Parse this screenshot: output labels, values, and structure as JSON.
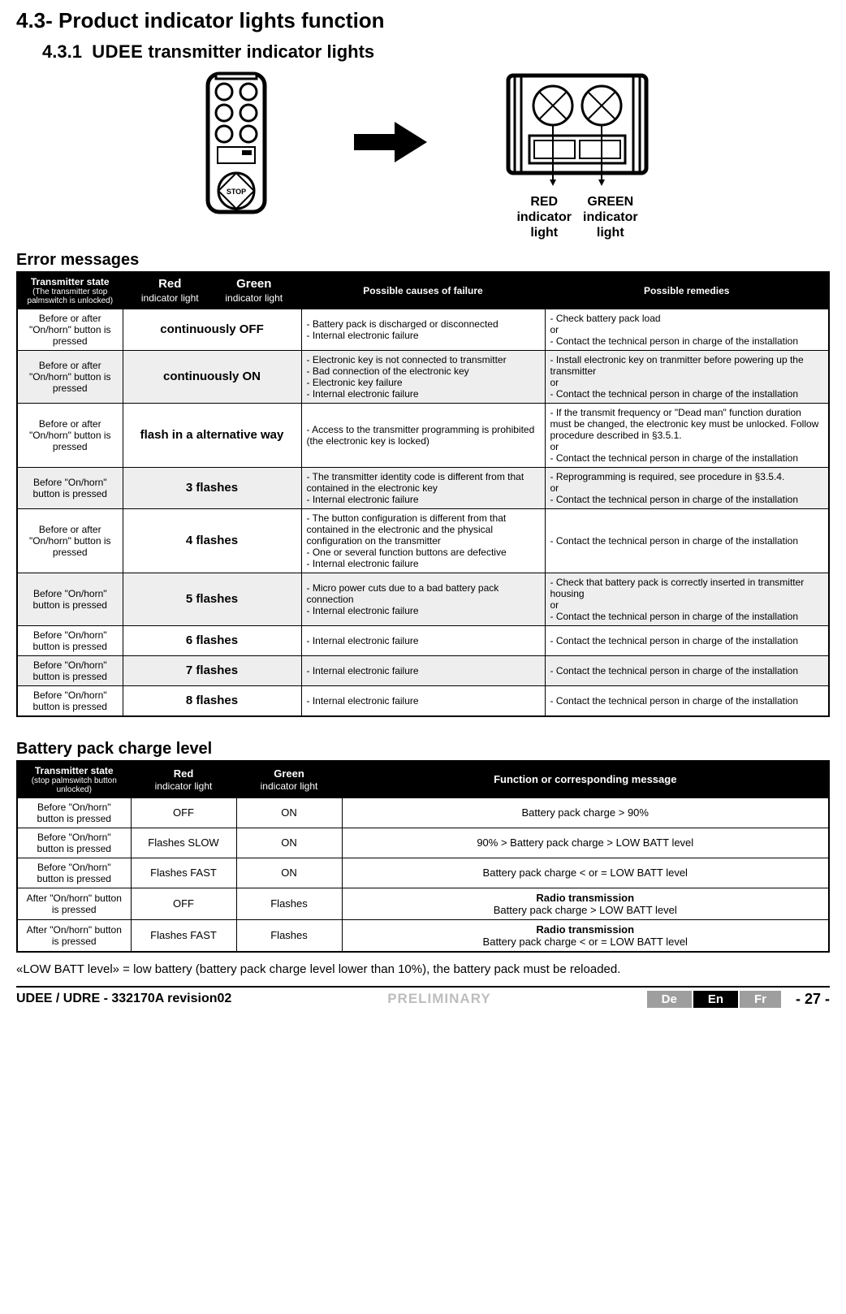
{
  "section": "4.3- Product indicator lights function",
  "subsection_number": "4.3.1",
  "brand": "UDEE",
  "subsection_text": " transmitter indicator lights",
  "red_label": "RED\nindicator\nlight",
  "green_label": "GREEN\nindicator\nlight",
  "errors_heading": "Error messages",
  "errors_header": {
    "state": "Transmitter state",
    "state_sub": "(The transmitter stop palmswitch is unlocked)",
    "red": "Red",
    "red_sub": "indicator light",
    "green": "Green",
    "green_sub": "indicator light",
    "cause": "Possible causes of failure",
    "remedy": "Possible remedies"
  },
  "errors_rows": [
    {
      "state": "Before or after \"On/horn\" button is pressed",
      "indicator": "continuously OFF",
      "cause": "- Battery pack is discharged or disconnected\n- Internal electronic failure",
      "remedy": "- Check battery pack load\nor\n- Contact the technical person in charge of the installation",
      "shaded": false
    },
    {
      "state": "Before or after \"On/horn\" button is pressed",
      "indicator": "continuously ON",
      "cause": "- Electronic key is not connected to transmitter\n- Bad connection of the electronic key\n- Electronic key failure\n- Internal electronic failure",
      "remedy": "- Install electronic key on tranmitter before powering up the transmitter\nor\n- Contact the technical person in charge of the installation",
      "shaded": true
    },
    {
      "state": "Before or after \"On/horn\" button is pressed",
      "indicator": "flash in a alternative way",
      "cause": "- Access to the transmitter programming is prohibited (the electronic key is locked)",
      "remedy": "- If the transmit frequency or \"Dead man\" function duration must be changed, the electronic key must be unlocked. Follow procedure described in §3.5.1.\nor\n- Contact the technical person in charge of the installation",
      "shaded": false
    },
    {
      "state": "Before \"On/horn\" button is pressed",
      "indicator": "3 flashes",
      "cause": "- The transmitter identity code is different from that contained in the electronic key\n- Internal electronic failure",
      "remedy": "- Reprogramming is required, see procedure in §3.5.4.\nor\n- Contact the technical person in charge of the installation",
      "shaded": true
    },
    {
      "state": "Before or after \"On/horn\" button is pressed",
      "indicator": "4 flashes",
      "cause": "- The button configuration is different from that contained in the electronic and the physical configuration on the transmitter\n- One or several function buttons are defective\n- Internal electronic failure",
      "remedy": "- Contact the technical person in charge of the installation",
      "shaded": false
    },
    {
      "state": "Before \"On/horn\" button is pressed",
      "indicator": "5 flashes",
      "cause": "- Micro power cuts due to a bad battery pack connection\n- Internal electronic failure",
      "remedy": "- Check that battery pack is correctly inserted in transmitter housing\nor\n- Contact the technical person in charge of the installation",
      "shaded": true
    },
    {
      "state": "Before \"On/horn\" button is pressed",
      "indicator": "6 flashes",
      "cause": "- Internal electronic failure",
      "remedy": "- Contact the technical person in charge of the installation",
      "shaded": false
    },
    {
      "state": "Before \"On/horn\" button is pressed",
      "indicator": "7 flashes",
      "cause": "- Internal electronic failure",
      "remedy": "- Contact the technical person in charge of the installation",
      "shaded": true
    },
    {
      "state": "Before \"On/horn\" button is pressed",
      "indicator": "8 flashes",
      "cause": "- Internal electronic failure",
      "remedy": "- Contact the technical person in charge of the installation",
      "shaded": false
    }
  ],
  "battery_heading": "Battery pack charge level",
  "battery_header": {
    "state": "Transmitter state",
    "state_sub": "(stop palmswitch button unlocked)",
    "red": "Red",
    "red_sub": "indicator light",
    "green": "Green",
    "green_sub": "indicator light",
    "msg": "Function or corresponding message"
  },
  "battery_rows": [
    {
      "state": "Before \"On/horn\" button is pressed",
      "red": "OFF",
      "green": "ON",
      "msg_bold": "",
      "msg": "Battery pack charge > 90%"
    },
    {
      "state": "Before \"On/horn\" button is pressed",
      "red": "Flashes SLOW",
      "green": "ON",
      "msg_bold": "",
      "msg": "90% > Battery pack charge > LOW BATT level"
    },
    {
      "state": "Before \"On/horn\" button is pressed",
      "red": "Flashes FAST",
      "green": "ON",
      "msg_bold": "",
      "msg": "Battery pack charge < or = LOW BATT level"
    },
    {
      "state": "After \"On/horn\" button is pressed",
      "red": "OFF",
      "green": "Flashes",
      "msg_bold": "Radio transmission",
      "msg": "Battery pack charge > LOW BATT level"
    },
    {
      "state": "After \"On/horn\" button is pressed",
      "red": "Flashes FAST",
      "green": "Flashes",
      "msg_bold": "Radio transmission",
      "msg": "Battery pack charge < or =  LOW BATT level"
    }
  ],
  "lowbatt_note": "«LOW BATT level» = low battery (battery pack charge level lower than 10%), the battery pack must be reloaded.",
  "footer": {
    "left": "UDEE / UDRE - 332170A revision02",
    "prelim": "PRELIMINARY",
    "de": "De",
    "en": "En",
    "fr": "Fr",
    "page": "- 27 -"
  }
}
